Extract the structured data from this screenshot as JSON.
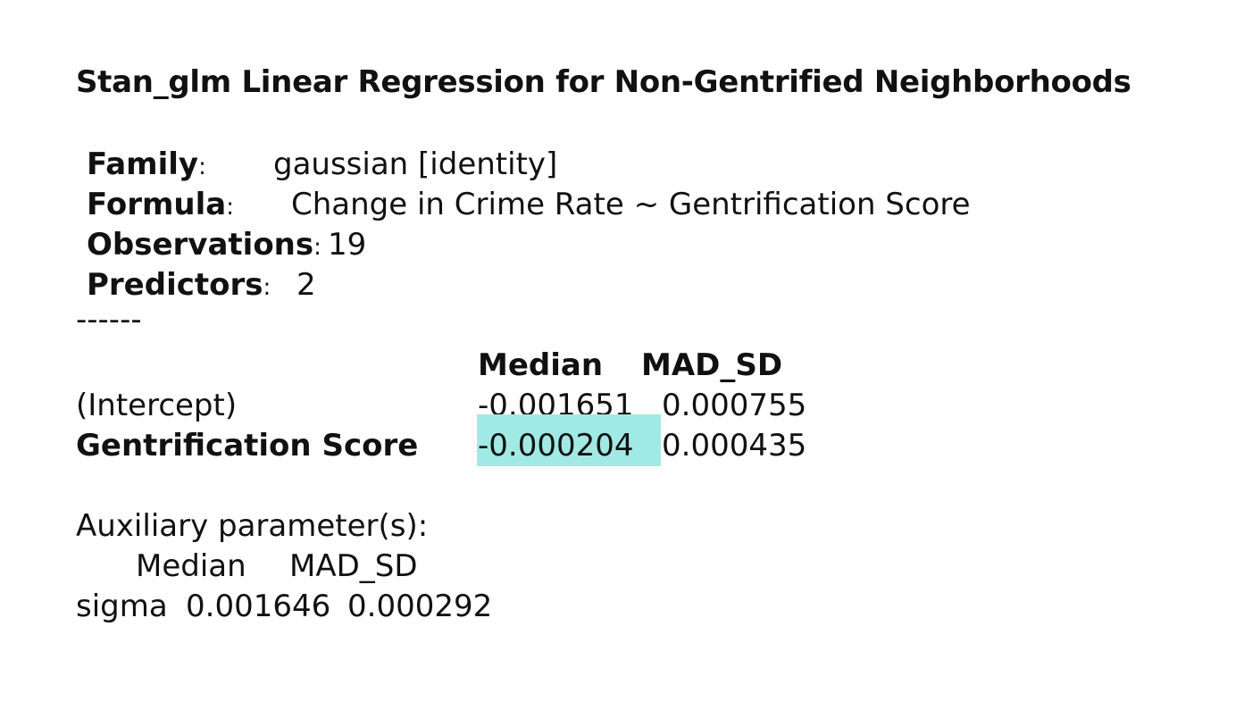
{
  "title": "Stan_glm Linear Regression for Non-Gentrified Neighborhoods",
  "meta": {
    "family_label": "Family",
    "family_value": "gaussian [identity]",
    "formula_label": "Formula",
    "formula_value": "Change in Crime Rate ~ Gentrification Score",
    "observations_label": "Observations",
    "observations_value": "19",
    "predictors_label": "Predictors",
    "predictors_value": "2",
    "colon": ":"
  },
  "separator": "------",
  "coef_table": {
    "headers": [
      "Median",
      "MAD_SD"
    ],
    "rows": [
      {
        "name": "(Intercept)",
        "median": "-0.001651",
        "mad_sd": "0.000755"
      },
      {
        "name": "Gentrification Score",
        "median": "-0.000204",
        "mad_sd": "0.000435"
      }
    ],
    "highlight_color": "#a1e9e4"
  },
  "auxiliary": {
    "heading": "Auxiliary parameter(s):",
    "headers": [
      "Median",
      "MAD_SD"
    ],
    "row": {
      "name": "sigma",
      "median": "0.001646",
      "mad_sd": "0.000292"
    }
  }
}
